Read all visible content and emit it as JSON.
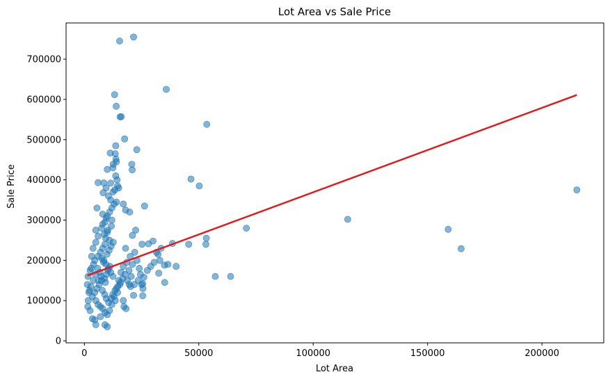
{
  "chart_data": {
    "type": "scatter",
    "title": "Lot Area vs Sale Price",
    "xlabel": "Lot Area",
    "ylabel": "Sale Price",
    "xlim": [
      -8000,
      227000
    ],
    "ylim": [
      -5000,
      790000
    ],
    "xticks": [
      0,
      50000,
      100000,
      150000,
      200000
    ],
    "yticks": [
      0,
      100000,
      200000,
      300000,
      400000,
      500000,
      600000,
      700000
    ],
    "grid": false,
    "point_color": "#1f77b4",
    "point_alpha": 0.55,
    "line_color": "#e31a1c",
    "regression_line": {
      "x": [
        1300,
        215245
      ],
      "y": [
        162000,
        611000
      ]
    },
    "series": [
      {
        "values_xy": [
          [
            15400,
            745000
          ],
          [
            21500,
            755000
          ],
          [
            13200,
            611700
          ],
          [
            35800,
            625000
          ],
          [
            13900,
            582900
          ],
          [
            15600,
            556600
          ],
          [
            16100,
            557000
          ],
          [
            53500,
            538000
          ],
          [
            17600,
            501800
          ],
          [
            22900,
            475000
          ],
          [
            13700,
            485000
          ],
          [
            11300,
            466500
          ],
          [
            13500,
            465000
          ],
          [
            12600,
            438800
          ],
          [
            14000,
            445000
          ],
          [
            13800,
            451950
          ],
          [
            20700,
            438780
          ],
          [
            20900,
            424870
          ],
          [
            10000,
            426000
          ],
          [
            12500,
            430000
          ],
          [
            46600,
            402000
          ],
          [
            50200,
            385000
          ],
          [
            14300,
            400000
          ],
          [
            13700,
            410000
          ],
          [
            15000,
            380000
          ],
          [
            13300,
            375000
          ],
          [
            11500,
            392000
          ],
          [
            8500,
            392500
          ],
          [
            6000,
            393000
          ],
          [
            8200,
            368000
          ],
          [
            26300,
            335000
          ],
          [
            17000,
            340000
          ],
          [
            18000,
            325000
          ],
          [
            19800,
            320000
          ],
          [
            14000,
            345000
          ],
          [
            5500,
            330000
          ],
          [
            8000,
            315000
          ],
          [
            9500,
            305000
          ],
          [
            12000,
            300000
          ],
          [
            70800,
            280000
          ],
          [
            115100,
            302000
          ],
          [
            159000,
            277000
          ],
          [
            164660,
            228950
          ],
          [
            215245,
            375000
          ],
          [
            22400,
            275000
          ],
          [
            21000,
            262000
          ],
          [
            25200,
            240000
          ],
          [
            28000,
            241000
          ],
          [
            30000,
            248000
          ],
          [
            38500,
            242000
          ],
          [
            45600,
            240000
          ],
          [
            53100,
            240000
          ],
          [
            53300,
            255000
          ],
          [
            32200,
            215000
          ],
          [
            33000,
            200000
          ],
          [
            35000,
            188000
          ],
          [
            36500,
            190000
          ],
          [
            40100,
            185000
          ],
          [
            32500,
            168000
          ],
          [
            35100,
            145000
          ],
          [
            57200,
            160000
          ],
          [
            63900,
            160000
          ],
          [
            25500,
            142000
          ],
          [
            25000,
            140000
          ],
          [
            25600,
            130000
          ],
          [
            21500,
            113000
          ],
          [
            25500,
            112000
          ],
          [
            26000,
            158000
          ],
          [
            29000,
            185000
          ],
          [
            24000,
            180000
          ],
          [
            21000,
            190000
          ],
          [
            23000,
            200000
          ],
          [
            20000,
            210000
          ],
          [
            22000,
            220000
          ],
          [
            18000,
            230000
          ],
          [
            17000,
            100000
          ],
          [
            17300,
            85000
          ],
          [
            18200,
            80000
          ],
          [
            9000,
            40000
          ],
          [
            10000,
            35000
          ],
          [
            5000,
            40000
          ],
          [
            4500,
            52000
          ],
          [
            3500,
            55000
          ],
          [
            7000,
            60000
          ],
          [
            2500,
            75000
          ],
          [
            1500,
            85000
          ],
          [
            1700,
            100000
          ],
          [
            2000,
            120000
          ],
          [
            1300,
            140000
          ],
          [
            1600,
            160000
          ],
          [
            2500,
            175000
          ],
          [
            3000,
            180000
          ],
          [
            4000,
            190000
          ],
          [
            4500,
            200000
          ],
          [
            3200,
            210000
          ],
          [
            3800,
            230000
          ],
          [
            5000,
            245000
          ],
          [
            6000,
            260000
          ],
          [
            5000,
            275000
          ],
          [
            7500,
            280000
          ],
          [
            8000,
            290000
          ],
          [
            9000,
            295000
          ],
          [
            10000,
            310000
          ],
          [
            11000,
            320000
          ],
          [
            12000,
            330000
          ],
          [
            13000,
            340000
          ],
          [
            11500,
            350000
          ],
          [
            10500,
            360000
          ],
          [
            12500,
            370000
          ],
          [
            14500,
            385000
          ],
          [
            9500,
            380000
          ],
          [
            10000,
            270000
          ],
          [
            11000,
            250000
          ],
          [
            9000,
            240000
          ],
          [
            8000,
            230000
          ],
          [
            7000,
            220000
          ],
          [
            6000,
            210000
          ],
          [
            8500,
            200000
          ],
          [
            9500,
            190000
          ],
          [
            10500,
            180000
          ],
          [
            11500,
            170000
          ],
          [
            12500,
            160000
          ],
          [
            7500,
            150000
          ],
          [
            6500,
            140000
          ],
          [
            5500,
            130000
          ],
          [
            4500,
            120000
          ],
          [
            3500,
            110000
          ],
          [
            5000,
            100000
          ],
          [
            6000,
            90000
          ],
          [
            7000,
            85000
          ],
          [
            8000,
            80000
          ],
          [
            9000,
            70000
          ],
          [
            10000,
            65000
          ],
          [
            11000,
            75000
          ],
          [
            12000,
            90000
          ],
          [
            13000,
            110000
          ],
          [
            14000,
            130000
          ],
          [
            15000,
            150000
          ],
          [
            16000,
            170000
          ],
          [
            17000,
            185000
          ],
          [
            18500,
            195000
          ],
          [
            19500,
            175000
          ],
          [
            20500,
            160000
          ],
          [
            15500,
            140000
          ],
          [
            14500,
            120000
          ],
          [
            13500,
            100000
          ],
          [
            9200,
            145000
          ],
          [
            8800,
            155000
          ],
          [
            9700,
            165000
          ],
          [
            10300,
            175000
          ],
          [
            11200,
            185000
          ],
          [
            8400,
            195000
          ],
          [
            7600,
            205000
          ],
          [
            9900,
            215000
          ],
          [
            10800,
            225000
          ],
          [
            11700,
            235000
          ],
          [
            12600,
            245000
          ],
          [
            9300,
            255000
          ],
          [
            8700,
            265000
          ],
          [
            10200,
            275000
          ],
          [
            11800,
            285000
          ],
          [
            6800,
            170000
          ],
          [
            7300,
            160000
          ],
          [
            6200,
            150000
          ],
          [
            5800,
            180000
          ],
          [
            4800,
            165000
          ],
          [
            3900,
            150000
          ],
          [
            2800,
            135000
          ],
          [
            2200,
            125000
          ],
          [
            7900,
            125000
          ],
          [
            8900,
            115000
          ],
          [
            9600,
            105000
          ],
          [
            10600,
            95000
          ],
          [
            11600,
            105000
          ],
          [
            12400,
            115000
          ],
          [
            13400,
            125000
          ],
          [
            14600,
            135000
          ],
          [
            15800,
            145000
          ],
          [
            16800,
            155000
          ],
          [
            17800,
            165000
          ],
          [
            18800,
            150000
          ],
          [
            19600,
            140000
          ],
          [
            20200,
            135000
          ],
          [
            21800,
            140000
          ],
          [
            23500,
            150000
          ],
          [
            24500,
            165000
          ],
          [
            27500,
            175000
          ],
          [
            30500,
            195000
          ],
          [
            31500,
            220000
          ],
          [
            33500,
            230000
          ]
        ]
      }
    ]
  }
}
